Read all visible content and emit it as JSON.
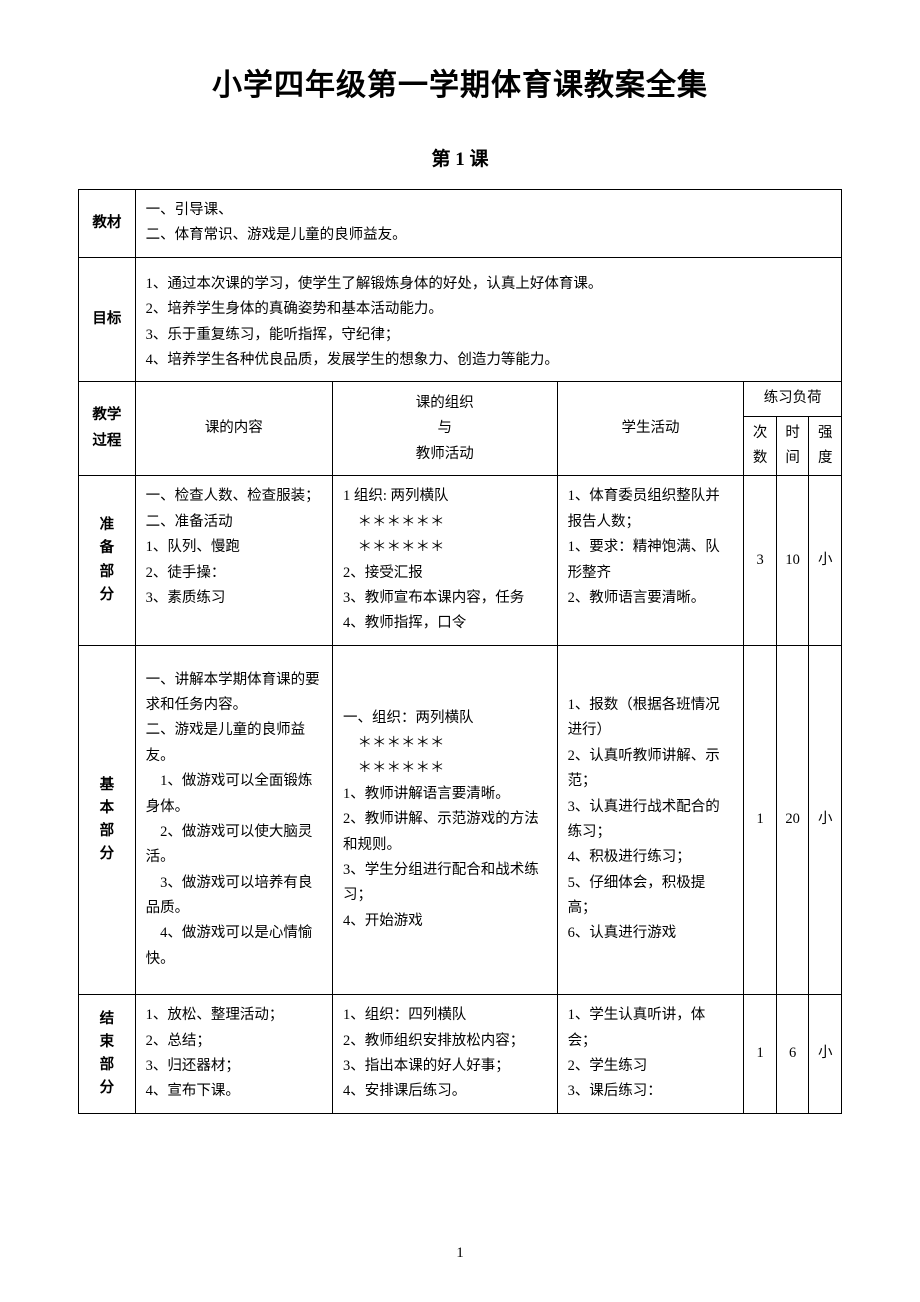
{
  "title": "小学四年级第一学期体育课教案全集",
  "subtitle": "第 1 课",
  "labels": {
    "materials": "教材",
    "goals": "目标",
    "process": "教学\n过程",
    "prep": "准\n备\n部\n分",
    "main": "基\n本\n部\n分",
    "end": "结\n束\n部\n分"
  },
  "headers": {
    "content": "课的内容",
    "organization": "课的组织\n与\n教师活动",
    "student": "学生活动",
    "load": "练习负荷",
    "times": "次\n数",
    "duration": "时\n间",
    "intensity": "强\n度"
  },
  "materials_text": "一、引导课、\n二、体育常识、游戏是儿童的良师益友。",
  "goals_text": "1、通过本次课的学习，使学生了解锻炼身体的好处，认真上好体育课。\n2、培养学生身体的真确姿势和基本活动能力。\n3、乐于重复练习，能听指挥，守纪律；\n4、培养学生各种优良品质，发展学生的想象力、创造力等能力。",
  "rows": {
    "prep": {
      "content": "一、检查人数、检查服装；\n二、准备活动\n1、队列、慢跑\n2、徒手操：\n3、素质练习",
      "org": "1 组织: 两列横队\n　＊＊＊＊＊＊\n　＊＊＊＊＊＊\n2、接受汇报\n3、教师宣布本课内容，任务\n4、教师指挥，口令",
      "student": "1、体育委员组织整队并报告人数；\n1、要求：精神饱满、队形整齐\n2、教师语言要清晰。",
      "times": "3",
      "duration": "10",
      "intensity": "小"
    },
    "main": {
      "content": "一、讲解本学期体育课的要求和任务内容。\n二、游戏是儿童的良师益友。\n　1、做游戏可以全面锻炼身体。\n　2、做游戏可以使大脑灵活。\n　3、做游戏可以培养有良品质。\n　4、做游戏可以是心情愉快。",
      "org": "一、组织：两列横队\n　＊＊＊＊＊＊\n　＊＊＊＊＊＊\n1、教师讲解语言要清晰。\n2、教师讲解、示范游戏的方法和规则。\n3、学生分组进行配合和战术练习；\n4、开始游戏",
      "student": "1、报数（根据各班情况进行）\n2、认真听教师讲解、示范；\n3、认真进行战术配合的练习；\n4、积极进行练习；\n5、仔细体会，积极提高；\n6、认真进行游戏",
      "times": "1",
      "duration": "20",
      "intensity": "小"
    },
    "end": {
      "content": "1、放松、整理活动；\n2、总结；\n3、归还器材；\n4、宣布下课。",
      "org": "1、组织：四列横队\n2、教师组织安排放松内容；\n3、指出本课的好人好事；\n4、安排课后练习。",
      "student": "1、学生认真听讲，体会；\n2、学生练习\n3、课后练习：",
      "times": "1",
      "duration": "6",
      "intensity": "小"
    }
  },
  "page_number": "1",
  "colors": {
    "text": "#000000",
    "background": "#ffffff",
    "border": "#000000"
  },
  "typography": {
    "title_fontsize": 30,
    "subtitle_fontsize": 19,
    "body_fontsize": 14.5,
    "font_family": "SimSun"
  }
}
